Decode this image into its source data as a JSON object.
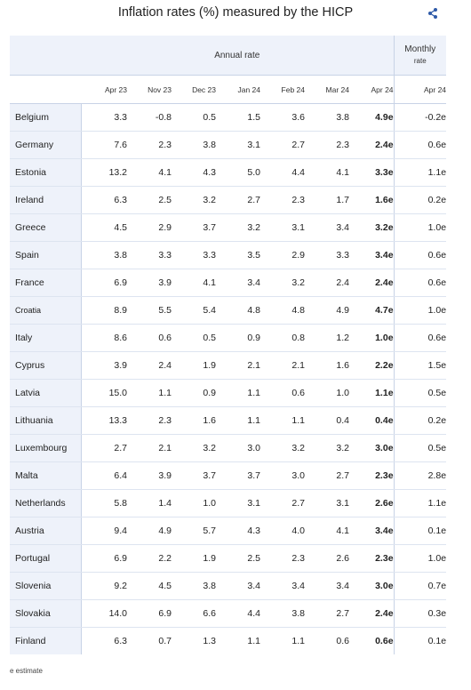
{
  "title": "Inflation rates (%) measured by the HICP",
  "group_headers": {
    "annual": "Annual rate",
    "monthly_line1": "Monthly",
    "monthly_line2": "rate"
  },
  "footnote": "e estimate",
  "chart_data": {
    "type": "table",
    "title": "Inflation rates (%) measured by the HICP",
    "columns": [
      "Apr 23",
      "Nov 23",
      "Dec 23",
      "Jan 24",
      "Feb 24",
      "Mar 24",
      "Apr 24",
      "Apr 24"
    ],
    "column_groups": [
      {
        "name": "Annual rate",
        "span": 7
      },
      {
        "name": "Monthly rate",
        "span": 1
      }
    ],
    "bold_column_index": 6,
    "rows": [
      {
        "country": "Belgium",
        "values": [
          "3.3",
          "-0.8",
          "0.5",
          "1.5",
          "3.6",
          "3.8",
          "4.9e",
          "-0.2e"
        ]
      },
      {
        "country": "Germany",
        "values": [
          "7.6",
          "2.3",
          "3.8",
          "3.1",
          "2.7",
          "2.3",
          "2.4e",
          "0.6e"
        ]
      },
      {
        "country": "Estonia",
        "values": [
          "13.2",
          "4.1",
          "4.3",
          "5.0",
          "4.4",
          "4.1",
          "3.3e",
          "1.1e"
        ]
      },
      {
        "country": "Ireland",
        "values": [
          "6.3",
          "2.5",
          "3.2",
          "2.7",
          "2.3",
          "1.7",
          "1.6e",
          "0.2e"
        ]
      },
      {
        "country": "Greece",
        "values": [
          "4.5",
          "2.9",
          "3.7",
          "3.2",
          "3.1",
          "3.4",
          "3.2e",
          "1.0e"
        ]
      },
      {
        "country": "Spain",
        "values": [
          "3.8",
          "3.3",
          "3.3",
          "3.5",
          "2.9",
          "3.3",
          "3.4e",
          "0.6e"
        ]
      },
      {
        "country": "France",
        "values": [
          "6.9",
          "3.9",
          "4.1",
          "3.4",
          "3.2",
          "2.4",
          "2.4e",
          "0.6e"
        ]
      },
      {
        "country": "Croatia",
        "values": [
          "8.9",
          "5.5",
          "5.4",
          "4.8",
          "4.8",
          "4.9",
          "4.7e",
          "1.0e"
        ]
      },
      {
        "country": "Italy",
        "values": [
          "8.6",
          "0.6",
          "0.5",
          "0.9",
          "0.8",
          "1.2",
          "1.0e",
          "0.6e"
        ]
      },
      {
        "country": "Cyprus",
        "values": [
          "3.9",
          "2.4",
          "1.9",
          "2.1",
          "2.1",
          "1.6",
          "2.2e",
          "1.5e"
        ]
      },
      {
        "country": "Latvia",
        "values": [
          "15.0",
          "1.1",
          "0.9",
          "1.1",
          "0.6",
          "1.0",
          "1.1e",
          "0.5e"
        ]
      },
      {
        "country": "Lithuania",
        "values": [
          "13.3",
          "2.3",
          "1.6",
          "1.1",
          "1.1",
          "0.4",
          "0.4e",
          "0.2e"
        ]
      },
      {
        "country": "Luxembourg",
        "values": [
          "2.7",
          "2.1",
          "3.2",
          "3.0",
          "3.2",
          "3.2",
          "3.0e",
          "0.5e"
        ]
      },
      {
        "country": "Malta",
        "values": [
          "6.4",
          "3.9",
          "3.7",
          "3.7",
          "3.0",
          "2.7",
          "2.3e",
          "2.8e"
        ]
      },
      {
        "country": "Netherlands",
        "values": [
          "5.8",
          "1.4",
          "1.0",
          "3.1",
          "2.7",
          "3.1",
          "2.6e",
          "1.1e"
        ]
      },
      {
        "country": "Austria",
        "values": [
          "9.4",
          "4.9",
          "5.7",
          "4.3",
          "4.0",
          "4.1",
          "3.4e",
          "0.1e"
        ]
      },
      {
        "country": "Portugal",
        "values": [
          "6.9",
          "2.2",
          "1.9",
          "2.5",
          "2.3",
          "2.6",
          "2.3e",
          "1.0e"
        ]
      },
      {
        "country": "Slovenia",
        "values": [
          "9.2",
          "4.5",
          "3.8",
          "3.4",
          "3.4",
          "3.4",
          "3.0e",
          "0.7e"
        ]
      },
      {
        "country": "Slovakia",
        "values": [
          "14.0",
          "6.9",
          "6.6",
          "4.4",
          "3.8",
          "2.7",
          "2.4e",
          "0.3e"
        ]
      },
      {
        "country": "Finland",
        "values": [
          "6.3",
          "0.7",
          "1.3",
          "1.1",
          "1.1",
          "0.6",
          "0.6e",
          "0.1e"
        ]
      }
    ],
    "colors": {
      "header_background": "#eef2fa",
      "grid_line": "#dde4f0"
    }
  }
}
